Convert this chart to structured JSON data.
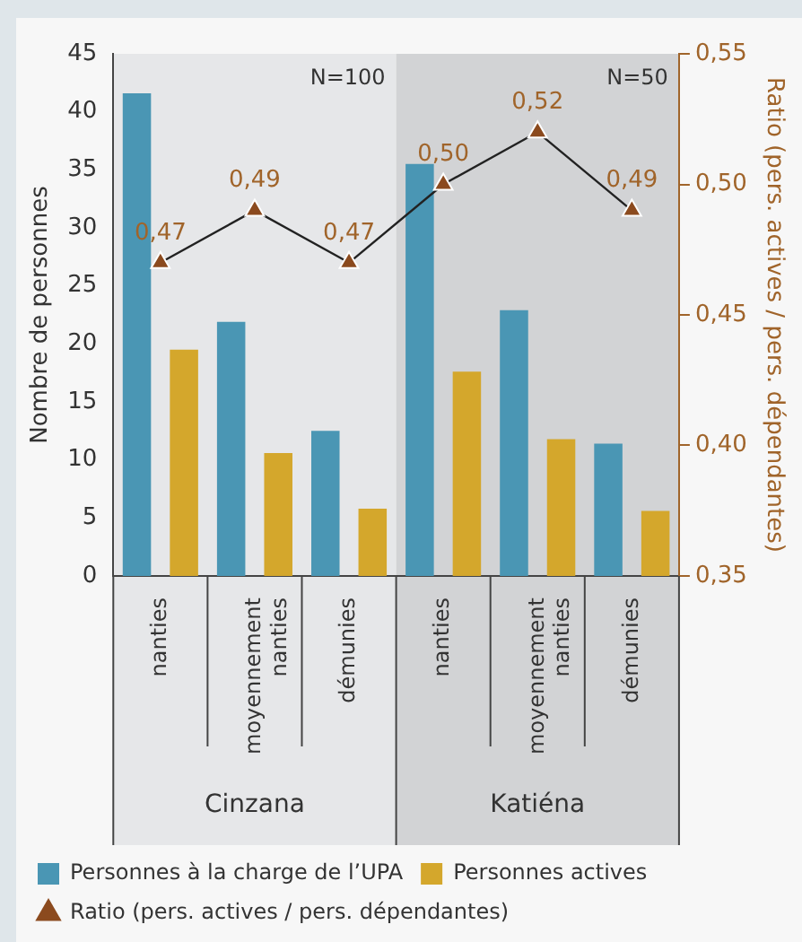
{
  "chart_data": {
    "type": "bar",
    "xlabel": null,
    "ylabel": "Nombre de personnes",
    "y2label": "Ratio (pers. actives / pers. dépendantes)",
    "categories": [
      "nanties",
      "moyennement nanties",
      "démunies",
      "nanties",
      "moyennement nanties",
      "démunies"
    ],
    "series": [
      {
        "name": "Personnes à la charge de l’UPA",
        "color": "#4a96b4",
        "values": [
          41.6,
          21.9,
          12.5,
          35.5,
          22.9,
          11.4
        ]
      },
      {
        "name": "Personnes actives",
        "color": "#d4a72c",
        "values": [
          19.5,
          10.6,
          5.8,
          17.6,
          11.8,
          5.6
        ]
      },
      {
        "name": "Ratio (pers. actives / pers. dépendantes)",
        "type": "line",
        "axis": "y2",
        "color": "#8b4a1e",
        "marker": "triangle",
        "values": [
          0.47,
          0.49,
          0.47,
          0.5,
          0.52,
          0.49
        ],
        "value_labels": [
          "0,47",
          "0,49",
          "0,47",
          "0,50",
          "0,52",
          "0,49"
        ]
      }
    ],
    "ylim": [
      0,
      45
    ],
    "yticks": [
      0,
      5,
      10,
      15,
      20,
      25,
      30,
      35,
      40,
      45
    ],
    "y2lim": [
      0.35,
      0.55
    ],
    "y2ticks": [
      {
        "value": 0.35,
        "label": "0,35"
      },
      {
        "value": 0.4,
        "label": "0,40"
      },
      {
        "value": 0.45,
        "label": "0,45"
      },
      {
        "value": 0.5,
        "label": "0,50"
      },
      {
        "value": 0.55,
        "label": "0,55"
      }
    ],
    "annotations": [
      "N=100",
      "N=50",
      "Cinzana",
      "Katiéna"
    ],
    "grid": false,
    "legend": "bottom"
  }
}
